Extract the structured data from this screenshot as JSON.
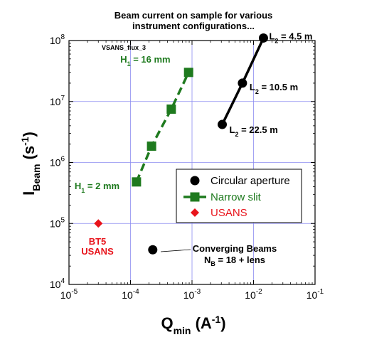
{
  "chart_data": {
    "type": "scatter",
    "title_lines": [
      "Beam current on sample for various",
      "instrument configurations..."
    ],
    "tag": "VSANS_flux_3",
    "xlabel": {
      "main": "Q",
      "sub": "min",
      "unit_open": " (A",
      "unit_sup": "-1",
      "unit_close": ")"
    },
    "ylabel": {
      "main": "I",
      "sub": "Beam",
      "unit_open": "(s",
      "unit_sup": "-1",
      "unit_close": ")"
    },
    "x_scale": "log",
    "y_scale": "log",
    "xlim": [
      1e-05,
      0.1
    ],
    "ylim": [
      10000,
      100000000
    ],
    "grid": true,
    "x_ticks": [
      {
        "value": 1e-05,
        "base": "10",
        "exp": "-5"
      },
      {
        "value": 0.0001,
        "base": "10",
        "exp": "-4"
      },
      {
        "value": 0.001,
        "base": "10",
        "exp": "-3"
      },
      {
        "value": 0.01,
        "base": "10",
        "exp": "-2"
      },
      {
        "value": 0.1,
        "base": "10",
        "exp": "-1"
      }
    ],
    "y_ticks": [
      {
        "value": 10000,
        "base": "10",
        "exp": "4"
      },
      {
        "value": 100000,
        "base": "10",
        "exp": "5"
      },
      {
        "value": 1000000,
        "base": "10",
        "exp": "6"
      },
      {
        "value": 10000000,
        "base": "10",
        "exp": "7"
      },
      {
        "value": 100000000,
        "base": "10",
        "exp": "8"
      }
    ],
    "series": [
      {
        "name": "Circular aperture",
        "color": "#000000",
        "marker": "circle",
        "line": "solid",
        "points": [
          {
            "x": 0.0031,
            "y": 4200000
          },
          {
            "x": 0.0066,
            "y": 20000000
          },
          {
            "x": 0.0145,
            "y": 110000000
          }
        ]
      },
      {
        "name": "Narrow slit",
        "color": "#1e7a1e",
        "marker": "square",
        "line": "dashed",
        "points": [
          {
            "x": 0.000125,
            "y": 480000
          },
          {
            "x": 0.00022,
            "y": 1850000
          },
          {
            "x": 0.00046,
            "y": 7500000
          },
          {
            "x": 0.00088,
            "y": 30000000
          }
        ]
      },
      {
        "name": "USANS",
        "color": "#e8141c",
        "marker": "diamond",
        "line": "none",
        "points": [
          {
            "x": 3e-05,
            "y": 100000
          }
        ]
      },
      {
        "name": "",
        "color": "#000000",
        "marker": "circle",
        "line": "none",
        "points": [
          {
            "x": 0.00023,
            "y": 37000
          }
        ]
      }
    ],
    "legend": {
      "placement": "middle-right",
      "entries": [
        {
          "label": "Circular aperture",
          "color": "#000000",
          "marker": "circle",
          "line": "none"
        },
        {
          "label": "Narrow slit",
          "color": "#1e7a1e",
          "marker": "square",
          "line": "solid"
        },
        {
          "label": "USANS",
          "color": "#e8141c",
          "marker": "diamond",
          "line": "none"
        }
      ]
    },
    "annotations": [
      {
        "main": "L",
        "sub": "2",
        "rest": " = 4.5 m",
        "color": "#000000",
        "x": 0.0145,
        "y": 110000000
      },
      {
        "main": "L",
        "sub": "2",
        "rest": " = 10.5 m",
        "color": "#000000",
        "x": 0.0066,
        "y": 20000000
      },
      {
        "main": "L",
        "sub": "2",
        "rest": " = 22.5 m",
        "color": "#000000",
        "x": 0.0031,
        "y": 4200000
      },
      {
        "main": "H",
        "sub": "1",
        "rest": " = 16 mm",
        "color": "#1e7a1e",
        "x": 0.00088,
        "y": 30000000
      },
      {
        "main": "H",
        "sub": "1",
        "rest": " = 2 mm",
        "color": "#1e7a1e",
        "x": 0.000125,
        "y": 480000
      }
    ],
    "bt5_label": [
      "BT5",
      "USANS"
    ],
    "converging": {
      "line1": "Converging Beams",
      "line2_main": "N",
      "line2_sub": "B",
      "line2_rest": " = 18 + lens",
      "x": 0.00023,
      "y": 37000
    }
  }
}
